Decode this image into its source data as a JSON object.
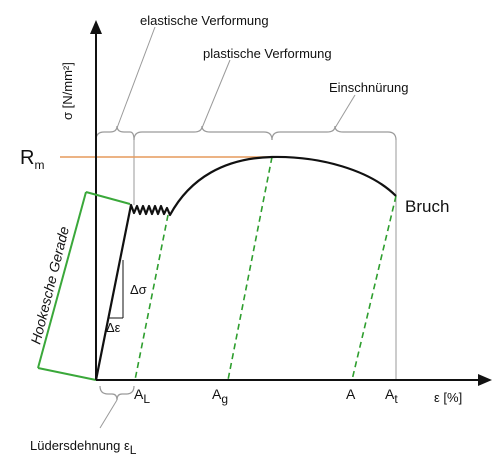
{
  "labels": {
    "elastic": "elastische Verformung",
    "plastic": "plastische Verformung",
    "necking": "Einschnürung",
    "y_axis": "σ [N/mm²]",
    "x_axis": "ε [%]",
    "rm_main": "R",
    "rm_sub": "m",
    "break": "Bruch",
    "hooke": "Hookesche Gerade",
    "delta_sigma": "Δσ",
    "delta_eps": "Δε",
    "al_main": "A",
    "al_sub": "L",
    "ag_main": "A",
    "ag_sub": "g",
    "a": "A",
    "at_main": "A",
    "at_sub": "t",
    "lueders_main": "Lüdersdehnung ε",
    "lueders_sub": "L"
  },
  "colors": {
    "curve": "#111111",
    "unloading_lines": "#2e9e2e",
    "hooke_line": "#3aa83a",
    "rm_line": "#e69a5c",
    "guides": "#9a9a9a"
  }
}
